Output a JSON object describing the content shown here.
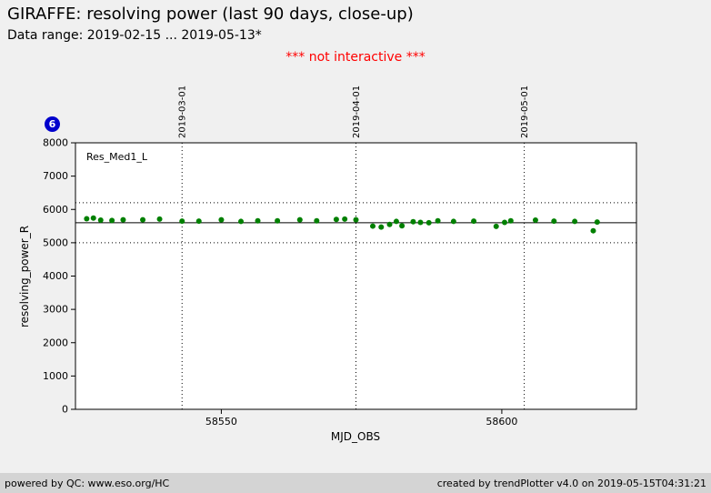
{
  "page": {
    "title": "GIRAFFE: resolving power (last 90 days, close-up)",
    "subtitle": "Data range: 2019-02-15 ... 2019-05-13*",
    "notice": "*** not interactive ***",
    "badge": "6"
  },
  "footer": {
    "left": "powered by QC: www.eso.org/HC",
    "right": "created by trendPlotter v4.0 on 2019-05-15T04:31:21"
  },
  "colors": {
    "notice": "#ff0000",
    "badge": "#0000cc",
    "points": "#008000"
  },
  "chart_data": {
    "type": "scatter",
    "series_label": "Res_Med1_L",
    "xlabel": "MJD_OBS",
    "ylabel": "resolving_power_R",
    "xlim": [
      58524,
      58624
    ],
    "ylim": [
      0,
      8000
    ],
    "x_ticks": [
      58550,
      58600
    ],
    "y_ticks": [
      0,
      1000,
      2000,
      3000,
      4000,
      5000,
      6000,
      7000,
      8000
    ],
    "date_lines": [
      {
        "mjd": 58543,
        "label": "2019-03-01"
      },
      {
        "mjd": 58574,
        "label": "2019-04-01"
      },
      {
        "mjd": 58604,
        "label": "2019-05-01"
      }
    ],
    "center_line": 5600,
    "upper_threshold": 6200,
    "lower_threshold": 5000,
    "grid": false,
    "point_color": "#008000",
    "points": [
      [
        58526.0,
        5720
      ],
      [
        58527.2,
        5740
      ],
      [
        58528.5,
        5680
      ],
      [
        58530.5,
        5670
      ],
      [
        58532.5,
        5690
      ],
      [
        58536.0,
        5690
      ],
      [
        58539.0,
        5710
      ],
      [
        58543.0,
        5650
      ],
      [
        58546.0,
        5650
      ],
      [
        58550.0,
        5690
      ],
      [
        58553.5,
        5640
      ],
      [
        58556.5,
        5660
      ],
      [
        58560.0,
        5660
      ],
      [
        58564.0,
        5690
      ],
      [
        58567.0,
        5660
      ],
      [
        58570.5,
        5700
      ],
      [
        58572.0,
        5710
      ],
      [
        58574.0,
        5690
      ],
      [
        58577.0,
        5500
      ],
      [
        58578.5,
        5470
      ],
      [
        58580.0,
        5550
      ],
      [
        58581.2,
        5640
      ],
      [
        58582.2,
        5510
      ],
      [
        58584.2,
        5630
      ],
      [
        58585.5,
        5610
      ],
      [
        58587.0,
        5600
      ],
      [
        58588.6,
        5660
      ],
      [
        58591.4,
        5640
      ],
      [
        58595.0,
        5650
      ],
      [
        58599.0,
        5490
      ],
      [
        58600.5,
        5610
      ],
      [
        58601.6,
        5660
      ],
      [
        58606.0,
        5680
      ],
      [
        58609.3,
        5650
      ],
      [
        58613.0,
        5640
      ],
      [
        58616.3,
        5360
      ],
      [
        58617.0,
        5620
      ]
    ]
  }
}
